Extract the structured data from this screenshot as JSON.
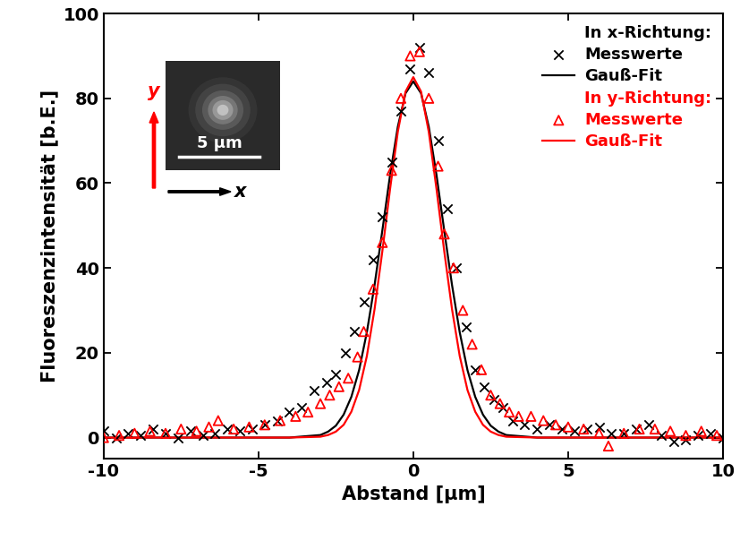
{
  "chart_data": {
    "type": "scatter",
    "x_label": "Abstand [µm]",
    "y_label": "Fluoreszenzintensität [b.E.]",
    "xlim": [
      -10,
      10
    ],
    "ylim": [
      -5,
      100
    ],
    "xticks": [
      -10,
      -5,
      0,
      5,
      10
    ],
    "yticks": [
      0,
      20,
      40,
      60,
      80,
      100
    ],
    "legend": "upper right",
    "inset": {
      "scale_bar": "5 µm",
      "x_label": "x",
      "y_label": "y"
    },
    "series": [
      {
        "name": "Messwerte",
        "group": "In x-Richtung:",
        "type": "scatter",
        "marker": "x",
        "color": "#000000",
        "x": [
          -10,
          -9.6,
          -9.2,
          -8.8,
          -8.4,
          -8.0,
          -7.6,
          -7.2,
          -6.8,
          -6.4,
          -6.0,
          -5.6,
          -5.2,
          -4.8,
          -4.4,
          -4.0,
          -3.6,
          -3.2,
          -2.8,
          -2.5,
          -2.2,
          -1.9,
          -1.6,
          -1.3,
          -1.0,
          -0.7,
          -0.4,
          -0.1,
          0.2,
          0.5,
          0.8,
          1.1,
          1.4,
          1.7,
          2.0,
          2.3,
          2.6,
          2.9,
          3.2,
          3.6,
          4.0,
          4.4,
          4.8,
          5.2,
          5.6,
          6.0,
          6.4,
          6.8,
          7.2,
          7.6,
          8.0,
          8.4,
          8.8,
          9.2,
          9.6,
          10
        ],
        "values": [
          1.5,
          0,
          1,
          0.5,
          2,
          1,
          0,
          1.5,
          0.5,
          1,
          2,
          1.5,
          2,
          3,
          4,
          6,
          7,
          11,
          13,
          15,
          20,
          25,
          32,
          42,
          52,
          65,
          77,
          87,
          92,
          86,
          70,
          54,
          40,
          26,
          16,
          12,
          9,
          7,
          4,
          3,
          2,
          3,
          2,
          1.5,
          2,
          2.5,
          1,
          1,
          2,
          3,
          0.5,
          -1,
          -0.5,
          0.5,
          1,
          0
        ]
      },
      {
        "name": "Gauß-Fit",
        "group": "In x-Richtung:",
        "type": "line",
        "line_style": "solid",
        "color": "#000000",
        "x": [
          -10,
          -4,
          -3,
          -2.75,
          -2.5,
          -2.25,
          -2,
          -1.75,
          -1.5,
          -1.25,
          -1,
          -0.75,
          -0.5,
          -0.25,
          0,
          0.25,
          0.5,
          0.75,
          1,
          1.25,
          1.5,
          1.75,
          2,
          2.25,
          2.5,
          2.75,
          3,
          4,
          10
        ],
        "values": [
          0,
          0,
          0.6,
          1.4,
          2.8,
          5.4,
          9.6,
          15.9,
          24.8,
          36.0,
          48.8,
          61.9,
          73.3,
          81.2,
          84,
          81.2,
          73.3,
          61.9,
          48.8,
          36.0,
          24.8,
          15.9,
          9.6,
          5.4,
          2.8,
          1.4,
          0.6,
          0,
          0
        ]
      },
      {
        "name": "Messwerte",
        "group": "In y-Richtung:",
        "type": "scatter",
        "marker": "triangle",
        "color": "#ff0000",
        "x": [
          -10,
          -9.5,
          -9.0,
          -8.5,
          -8.0,
          -7.5,
          -7.0,
          -6.6,
          -6.3,
          -5.8,
          -5.3,
          -4.8,
          -4.3,
          -3.8,
          -3.4,
          -3.0,
          -2.7,
          -2.4,
          -2.1,
          -1.8,
          -1.6,
          -1.3,
          -1.0,
          -0.7,
          -0.4,
          -0.1,
          0.2,
          0.5,
          0.8,
          1.0,
          1.3,
          1.6,
          1.9,
          2.2,
          2.5,
          2.8,
          3.1,
          3.4,
          3.8,
          4.2,
          4.6,
          5.0,
          5.5,
          6.0,
          6.3,
          6.8,
          7.3,
          7.8,
          8.3,
          8.8,
          9.3,
          9.8
        ],
        "values": [
          0,
          0.5,
          1,
          1.5,
          1,
          2,
          1.5,
          2.5,
          4,
          2,
          2.5,
          3,
          4,
          5,
          6,
          8,
          10,
          12,
          14,
          19,
          25,
          35,
          46,
          63,
          80,
          90,
          91,
          80,
          64,
          48,
          40,
          30,
          22,
          16,
          10,
          8,
          6,
          5,
          5,
          4,
          3,
          2.5,
          2,
          1,
          -2,
          1,
          2,
          2,
          1.5,
          0.5,
          1.5,
          0.5
        ]
      },
      {
        "name": "Gauß-Fit",
        "group": "In y-Richtung:",
        "type": "line",
        "line_style": "solid",
        "color": "#ff0000",
        "x": [
          -10,
          -4,
          -3,
          -2.75,
          -2.5,
          -2.25,
          -2,
          -1.75,
          -1.5,
          -1.25,
          -1,
          -0.75,
          -0.5,
          -0.25,
          0,
          0.25,
          0.5,
          0.75,
          1,
          1.25,
          1.5,
          1.75,
          2,
          2.25,
          2.5,
          2.75,
          3,
          4,
          10
        ],
        "values": [
          0,
          0,
          0.2,
          0.6,
          1.4,
          3.0,
          6.1,
          11.2,
          19.2,
          30.3,
          43.9,
          58.6,
          72.1,
          81.6,
          85,
          81.6,
          72.1,
          58.6,
          43.9,
          30.3,
          19.2,
          11.2,
          6.1,
          3.0,
          1.4,
          0.6,
          0.2,
          0,
          0
        ]
      }
    ]
  }
}
